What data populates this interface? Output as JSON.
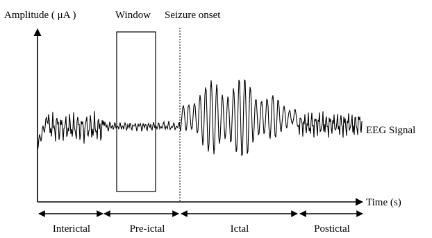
{
  "labels": {
    "y_axis": "Amplitude ( μA )",
    "x_axis": "Time (s)",
    "window": "Window",
    "seizure_onset": "Seizure onset",
    "signal": "EEG Signal"
  },
  "phases": [
    {
      "label": "Interictal"
    },
    {
      "label": "Pre-ictal"
    },
    {
      "label": "Ictal"
    },
    {
      "label": "Postictal"
    }
  ],
  "colors": {
    "ink": "#000000",
    "background": "#ffffff"
  }
}
